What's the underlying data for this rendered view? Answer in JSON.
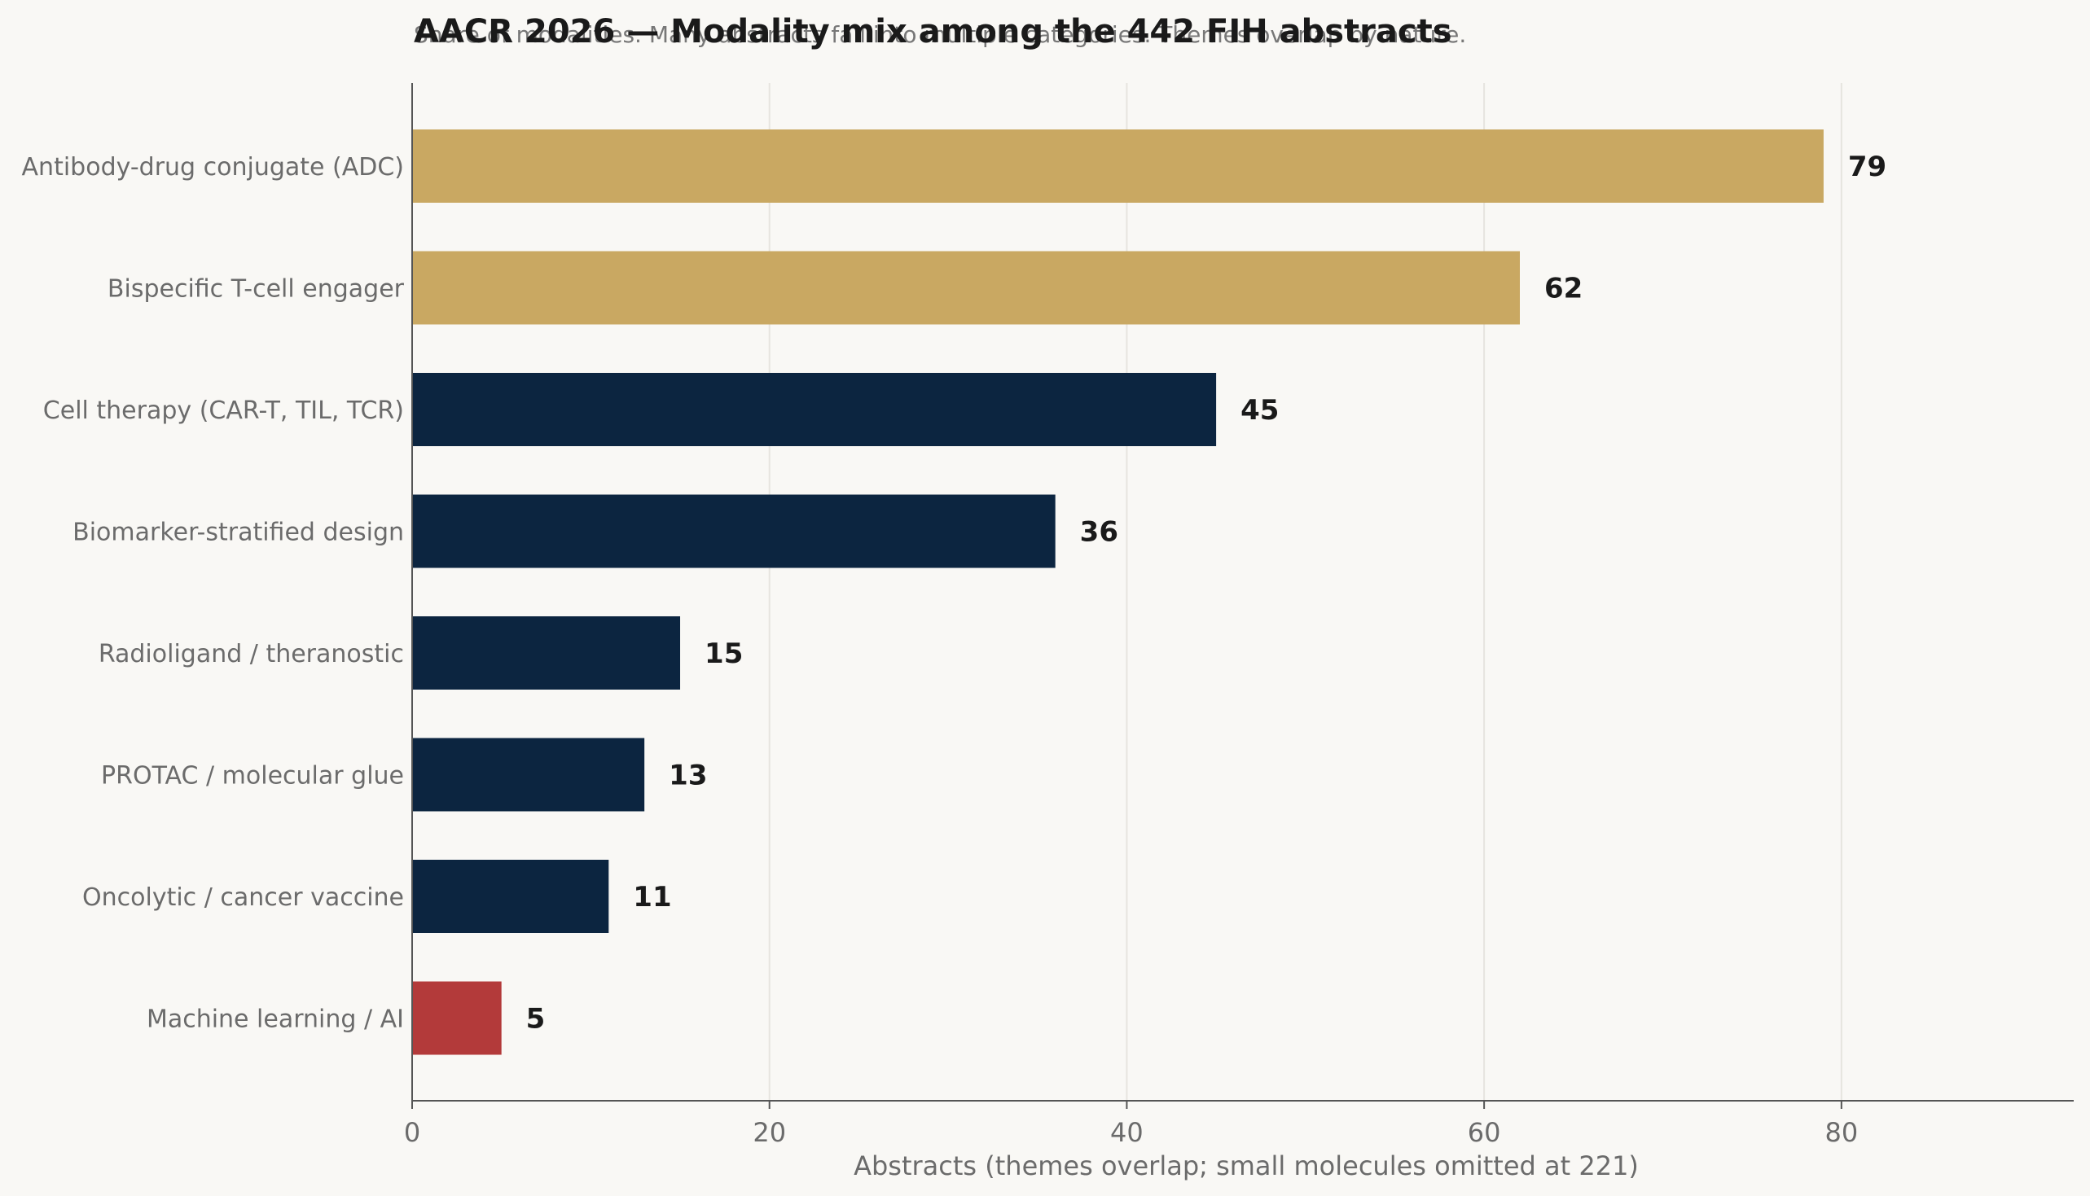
{
  "chart_data": {
    "type": "bar",
    "orientation": "horizontal",
    "title": "AACR 2026 — Modality mix among the 442 FIH abstracts",
    "subtitle": "Share of modalities. Many abstracts fall into multiple categories. Themes overlap by nature.",
    "xlabel": "Abstracts (themes overlap; small molecules omitted at 221)",
    "ylabel": "",
    "xlim": [
      0,
      93
    ],
    "xticks": [
      0,
      20,
      40,
      60,
      80
    ],
    "grid": "vertical",
    "categories": [
      "Antibody-drug conjugate (ADC)",
      "Bispecific T-cell engager",
      "Cell therapy (CAR-T, TIL, TCR)",
      "Biomarker-stratified design",
      "Radioligand / theranostic",
      "PROTAC / molecular glue",
      "Oncolytic / cancer vaccine",
      "Machine learning / AI"
    ],
    "values": [
      79,
      62,
      45,
      36,
      15,
      13,
      11,
      5
    ],
    "colors": [
      "#c9a862",
      "#c9a862",
      "#0c2540",
      "#0c2540",
      "#0c2540",
      "#0c2540",
      "#0c2540",
      "#b33a3a"
    ]
  }
}
